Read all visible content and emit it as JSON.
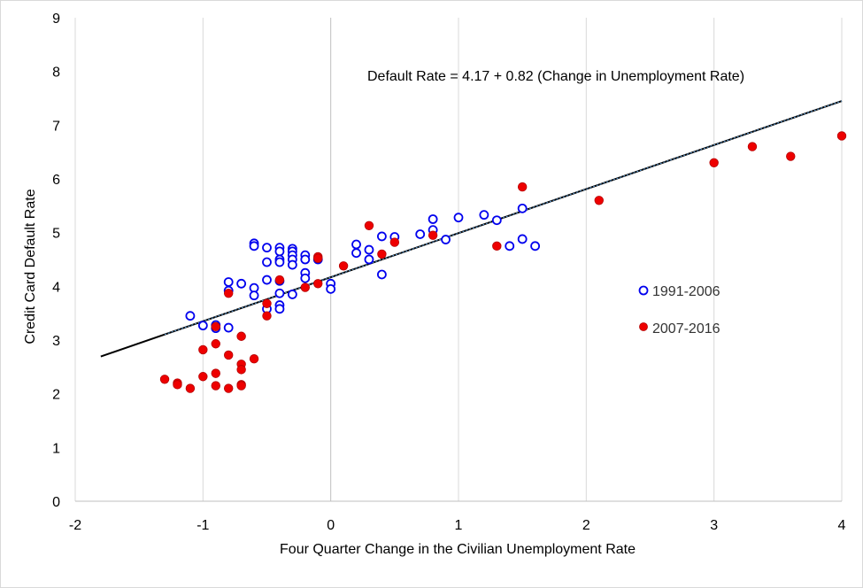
{
  "chart_data": {
    "type": "scatter",
    "title": "",
    "xlabel": "Four Quarter Change in the Civilian Unemployment Rate",
    "ylabel": "Credit Card Default Rate",
    "xlim": [
      -2,
      4
    ],
    "ylim": [
      0,
      9
    ],
    "x_ticks": [
      -2,
      -1,
      0,
      1,
      2,
      3,
      4
    ],
    "y_ticks": [
      0,
      1,
      2,
      3,
      4,
      5,
      6,
      7,
      8,
      9
    ],
    "x_tick_labels": [
      "-2",
      "-1",
      "0",
      "1",
      "2",
      "3",
      "4"
    ],
    "y_tick_labels": [
      "0",
      "1",
      "2",
      "3",
      "4",
      "5",
      "6",
      "7",
      "8",
      "9"
    ],
    "grid": "vertical",
    "annotation": "Default Rate = 4.17 + 0.82 (Change in Unemployment Rate)",
    "trendline": {
      "intercept": 4.17,
      "slope": 0.82,
      "x_range": [
        -1.8,
        4
      ]
    },
    "colors": {
      "series1": "#0000ee",
      "series2": "#ee0000",
      "trend": "#000000",
      "grid": "#d9d9d9"
    },
    "series": [
      {
        "name": "1991-2006",
        "marker": "hollow-circle",
        "points": [
          [
            -1.1,
            3.45
          ],
          [
            -1.0,
            3.27
          ],
          [
            -0.9,
            3.28
          ],
          [
            -0.9,
            3.22
          ],
          [
            -0.8,
            3.23
          ],
          [
            -0.8,
            4.08
          ],
          [
            -0.8,
            3.92
          ],
          [
            -0.7,
            4.05
          ],
          [
            -0.6,
            4.8
          ],
          [
            -0.6,
            4.75
          ],
          [
            -0.6,
            3.97
          ],
          [
            -0.6,
            3.83
          ],
          [
            -0.5,
            4.72
          ],
          [
            -0.5,
            4.45
          ],
          [
            -0.5,
            4.12
          ],
          [
            -0.5,
            3.58
          ],
          [
            -0.4,
            4.72
          ],
          [
            -0.4,
            4.65
          ],
          [
            -0.4,
            4.5
          ],
          [
            -0.4,
            4.45
          ],
          [
            -0.4,
            4.1
          ],
          [
            -0.4,
            3.87
          ],
          [
            -0.4,
            3.65
          ],
          [
            -0.4,
            3.58
          ],
          [
            -0.3,
            4.7
          ],
          [
            -0.3,
            4.65
          ],
          [
            -0.3,
            4.58
          ],
          [
            -0.3,
            4.5
          ],
          [
            -0.3,
            4.4
          ],
          [
            -0.3,
            3.85
          ],
          [
            -0.2,
            4.58
          ],
          [
            -0.2,
            4.5
          ],
          [
            -0.2,
            4.25
          ],
          [
            -0.2,
            4.15
          ],
          [
            -0.1,
            4.5
          ],
          [
            0.0,
            4.05
          ],
          [
            0.0,
            3.95
          ],
          [
            0.2,
            4.78
          ],
          [
            0.2,
            4.62
          ],
          [
            0.3,
            4.68
          ],
          [
            0.3,
            4.5
          ],
          [
            0.4,
            4.93
          ],
          [
            0.4,
            4.22
          ],
          [
            0.5,
            4.92
          ],
          [
            0.7,
            4.97
          ],
          [
            0.8,
            5.25
          ],
          [
            0.8,
            5.05
          ],
          [
            0.9,
            4.87
          ],
          [
            1.0,
            5.28
          ],
          [
            1.2,
            5.33
          ],
          [
            1.3,
            5.23
          ],
          [
            1.4,
            4.75
          ],
          [
            1.5,
            5.45
          ],
          [
            1.5,
            4.88
          ],
          [
            1.6,
            4.75
          ]
        ]
      },
      {
        "name": "2007-2016",
        "marker": "filled-circle",
        "points": [
          [
            -1.3,
            2.27
          ],
          [
            -1.2,
            2.2
          ],
          [
            -1.2,
            2.17
          ],
          [
            -1.1,
            2.1
          ],
          [
            -1.0,
            2.82
          ],
          [
            -1.0,
            2.32
          ],
          [
            -0.9,
            3.25
          ],
          [
            -0.9,
            2.93
          ],
          [
            -0.9,
            2.38
          ],
          [
            -0.9,
            2.15
          ],
          [
            -0.8,
            3.87
          ],
          [
            -0.8,
            2.72
          ],
          [
            -0.8,
            2.1
          ],
          [
            -0.7,
            3.07
          ],
          [
            -0.7,
            2.55
          ],
          [
            -0.7,
            2.45
          ],
          [
            -0.7,
            2.17
          ],
          [
            -0.7,
            2.15
          ],
          [
            -0.6,
            2.65
          ],
          [
            -0.5,
            3.68
          ],
          [
            -0.5,
            3.45
          ],
          [
            -0.4,
            4.12
          ],
          [
            -0.2,
            3.98
          ],
          [
            -0.1,
            4.55
          ],
          [
            -0.1,
            4.52
          ],
          [
            -0.1,
            4.05
          ],
          [
            0.1,
            4.38
          ],
          [
            0.3,
            5.13
          ],
          [
            0.4,
            4.6
          ],
          [
            0.5,
            4.82
          ],
          [
            0.8,
            4.95
          ],
          [
            1.3,
            4.75
          ],
          [
            1.5,
            5.85
          ],
          [
            2.1,
            5.6
          ],
          [
            3.0,
            6.3
          ],
          [
            3.3,
            6.6
          ],
          [
            3.6,
            6.42
          ],
          [
            4.0,
            6.8
          ]
        ]
      }
    ]
  }
}
